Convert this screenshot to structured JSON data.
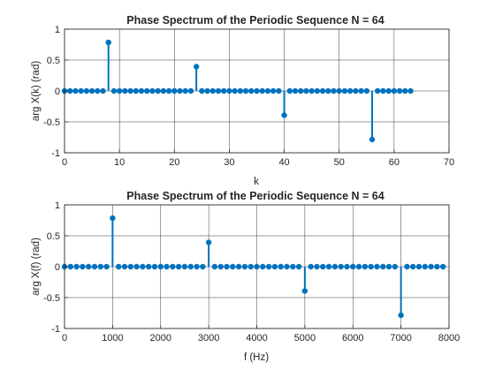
{
  "chart_data": [
    {
      "type": "stem",
      "title": "Phase Spectrum of the Periodic Sequence N = 64",
      "xlabel": "k",
      "ylabel": "arg X(k)  (rad)",
      "xlim": [
        0,
        70
      ],
      "ylim": [
        -1,
        1
      ],
      "xticks": [
        0,
        10,
        20,
        30,
        40,
        50,
        60,
        70
      ],
      "xtick_labels": [
        "0",
        "10",
        "20",
        "30",
        "40",
        "50",
        "60",
        "70"
      ],
      "yticks": [
        -1,
        -0.5,
        0,
        0.5,
        1
      ],
      "ytick_labels": [
        "-1",
        "-0.5",
        "0",
        "0.5",
        "1"
      ],
      "grid": true,
      "color": "#0072BD",
      "n_points": 64,
      "x_start": 0,
      "x_step": 1,
      "nonzero": [
        {
          "x": 8,
          "y": 0.785
        },
        {
          "x": 24,
          "y": 0.393
        },
        {
          "x": 40,
          "y": -0.393
        },
        {
          "x": 56,
          "y": -0.785
        }
      ]
    },
    {
      "type": "stem",
      "title": "Phase Spectrum of the Periodic Sequence N = 64",
      "xlabel": "f (Hz)",
      "ylabel": "arg X(f)  (rad)",
      "xlim": [
        0,
        8000
      ],
      "ylim": [
        -1,
        1
      ],
      "xticks": [
        0,
        1000,
        2000,
        3000,
        4000,
        5000,
        6000,
        7000,
        8000
      ],
      "xtick_labels": [
        "0",
        "1000",
        "2000",
        "3000",
        "4000",
        "5000",
        "6000",
        "7000",
        "8000"
      ],
      "yticks": [
        -1,
        -0.5,
        0,
        0.5,
        1
      ],
      "ytick_labels": [
        "-1",
        "-0.5",
        "0",
        "0.5",
        "1"
      ],
      "grid": true,
      "color": "#0072BD",
      "n_points": 64,
      "x_start": 0,
      "x_step": 125,
      "nonzero": [
        {
          "x": 1000,
          "y": 0.785
        },
        {
          "x": 3000,
          "y": 0.393
        },
        {
          "x": 5000,
          "y": -0.393
        },
        {
          "x": 7000,
          "y": -0.785
        }
      ]
    }
  ]
}
